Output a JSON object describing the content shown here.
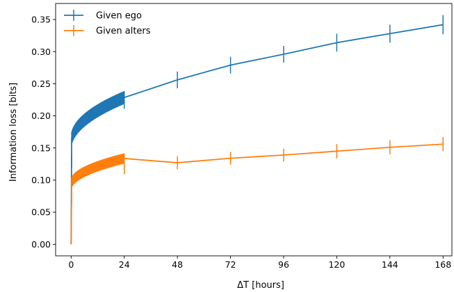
{
  "chart_data": {
    "type": "line",
    "xlabel_prefix": "ΔT",
    "xlabel_suffix": " [hours]",
    "ylabel": "Information loss [bits]",
    "xlim": [
      -7,
      172
    ],
    "ylim": [
      -0.018,
      0.375
    ],
    "xticks": [
      0,
      24,
      48,
      72,
      96,
      120,
      144,
      168
    ],
    "yticks": [
      0.0,
      0.05,
      0.1,
      0.15,
      0.2,
      0.25,
      0.3,
      0.35
    ],
    "ytick_labels": [
      "0.00",
      "0.05",
      "0.10",
      "0.15",
      "0.20",
      "0.25",
      "0.30",
      "0.35"
    ],
    "grid": false,
    "legend_position": "upper-left",
    "series": [
      {
        "name": "Given ego",
        "color": "#1f77b4",
        "dense_fit": {
          "a": 0.158,
          "b": 0.0144,
          "err": 0.01,
          "x_start": 0.25,
          "x_end": 24,
          "step": 0.25
        },
        "x": [
          0,
          0.25,
          24,
          48,
          72,
          96,
          120,
          144,
          168
        ],
        "y": [
          0.0,
          0.13,
          0.221,
          0.256,
          0.279,
          0.296,
          0.314,
          0.328,
          0.342
        ],
        "err": [
          0,
          0.01,
          0.01,
          0.013,
          0.013,
          0.013,
          0.014,
          0.014,
          0.015
        ]
      },
      {
        "name": "Given alters",
        "color": "#ff7f0e",
        "dense_fit": {
          "a": 0.092,
          "b": 0.0085,
          "err": 0.008,
          "x_start": 0.25,
          "x_end": 24,
          "step": 0.25
        },
        "x": [
          0,
          0.25,
          24,
          48,
          72,
          96,
          120,
          144,
          168
        ],
        "y": [
          0.0,
          0.07,
          0.118,
          0.127,
          0.134,
          0.139,
          0.145,
          0.151,
          0.156
        ],
        "err": [
          0,
          0.008,
          0.009,
          0.01,
          0.01,
          0.01,
          0.011,
          0.011,
          0.011
        ]
      }
    ]
  }
}
